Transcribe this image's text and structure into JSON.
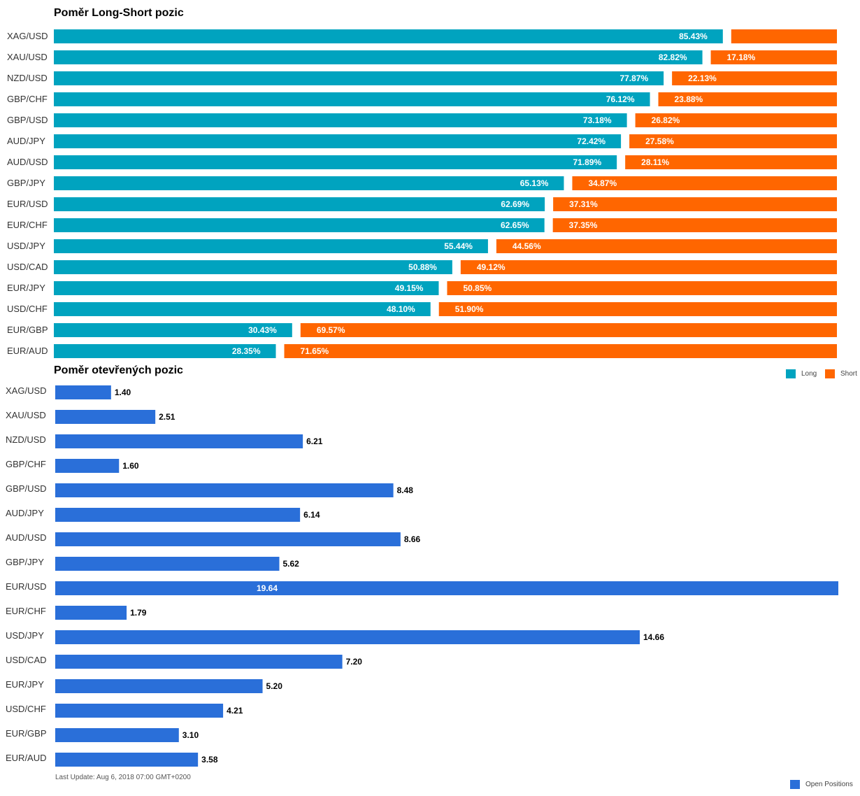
{
  "chart_data": [
    {
      "type": "bar",
      "orientation": "horizontal",
      "stacked": true,
      "title": "Poměr Long-Short pozic",
      "categories": [
        "XAG/USD",
        "XAU/USD",
        "NZD/USD",
        "GBP/CHF",
        "GBP/USD",
        "AUD/JPY",
        "AUD/USD",
        "GBP/JPY",
        "EUR/USD",
        "EUR/CHF",
        "USD/JPY",
        "USD/CAD",
        "EUR/JPY",
        "USD/CHF",
        "EUR/GBP",
        "EUR/AUD"
      ],
      "series": [
        {
          "name": "Long",
          "color": "#00a3bf",
          "values": [
            85.43,
            82.82,
            77.87,
            76.12,
            73.18,
            72.42,
            71.89,
            65.13,
            62.69,
            62.65,
            55.44,
            50.88,
            49.15,
            48.1,
            30.43,
            28.35
          ],
          "labels": [
            "85.43%",
            "82.82%",
            "77.87%",
            "76.12%",
            "73.18%",
            "72.42%",
            "71.89%",
            "65.13%",
            "62.69%",
            "62.65%",
            "55.44%",
            "50.88%",
            "49.15%",
            "48.10%",
            "30.43%",
            "28.35%"
          ]
        },
        {
          "name": "Short",
          "color": "#ff6600",
          "values": [
            14.57,
            17.18,
            22.13,
            23.88,
            26.82,
            27.58,
            28.11,
            34.87,
            37.31,
            37.35,
            44.56,
            49.12,
            50.85,
            51.9,
            69.57,
            71.65
          ],
          "labels": [
            "",
            "17.18%",
            "22.13%",
            "23.88%",
            "26.82%",
            "27.58%",
            "28.11%",
            "34.87%",
            "37.31%",
            "37.35%",
            "44.56%",
            "49.12%",
            "50.85%",
            "51.90%",
            "69.57%",
            "71.65%"
          ]
        }
      ],
      "xlim": [
        0,
        100
      ],
      "legend": "bottom-right"
    },
    {
      "type": "bar",
      "orientation": "horizontal",
      "title": "Poměr otevřených pozic",
      "categories": [
        "XAG/USD",
        "XAU/USD",
        "NZD/USD",
        "GBP/CHF",
        "GBP/USD",
        "AUD/JPY",
        "AUD/USD",
        "GBP/JPY",
        "EUR/USD",
        "EUR/CHF",
        "USD/JPY",
        "USD/CAD",
        "EUR/JPY",
        "USD/CHF",
        "EUR/GBP",
        "EUR/AUD"
      ],
      "series": [
        {
          "name": "Open Positions",
          "color": "#2a6fd9",
          "values": [
            1.4,
            2.51,
            6.21,
            1.6,
            8.48,
            6.14,
            8.66,
            5.62,
            19.64,
            1.79,
            14.66,
            7.2,
            5.2,
            4.21,
            3.1,
            3.58
          ],
          "labels": [
            "1.40",
            "2.51",
            "6.21",
            "1.60",
            "8.48",
            "6.14",
            "8.66",
            "5.62",
            "19.64",
            "1.79",
            "14.66",
            "7.20",
            "5.20",
            "4.21",
            "3.10",
            "3.58"
          ]
        }
      ],
      "xlim": [
        0,
        19.64
      ],
      "legend": "bottom-right"
    }
  ],
  "footer": "Last Update: Aug 6, 2018 07:00 GMT+0200"
}
